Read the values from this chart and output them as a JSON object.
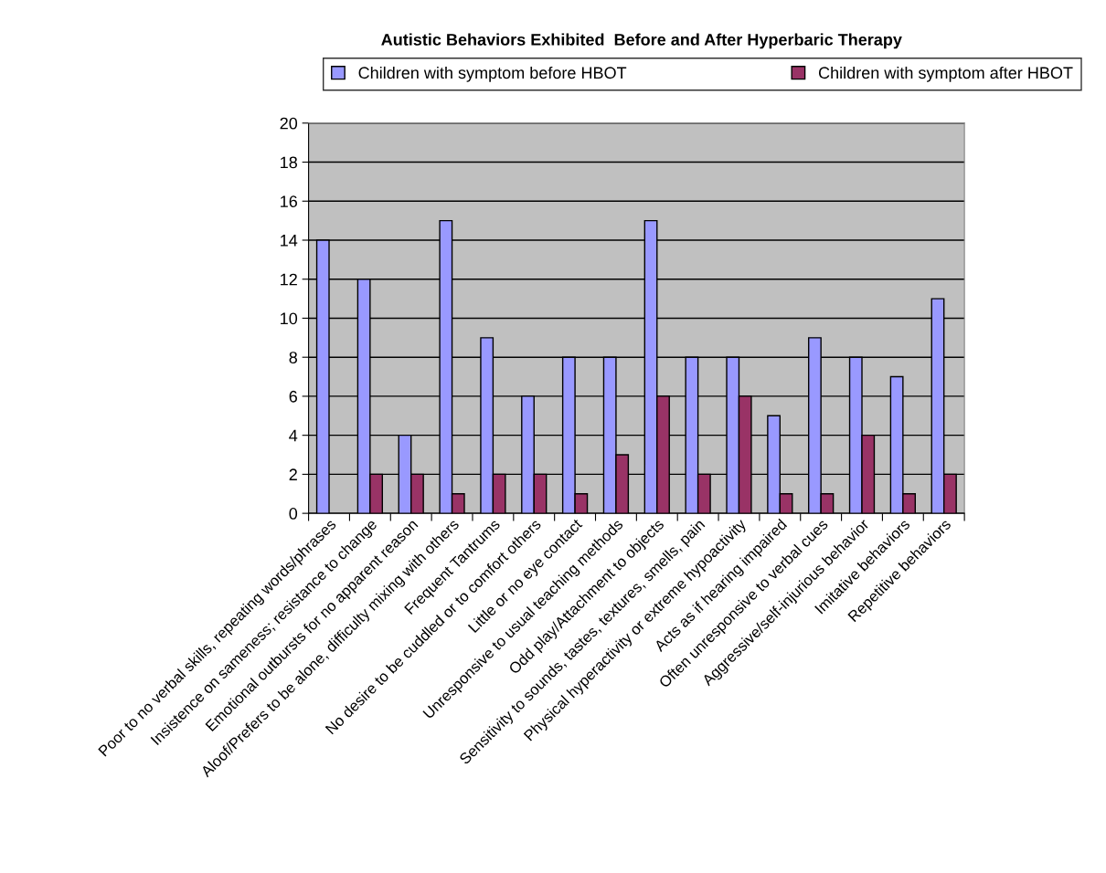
{
  "chart_data": {
    "type": "bar",
    "title": "Autistic Behaviors Exhibited  Before and After Hyperbaric Therapy",
    "categories": [
      "Poor to no verbal skills, repeating words/phrases",
      "Insistence on sameness; resistance to change",
      "Emotional outbursts for no apparent reason",
      "Aloof/Prefers to be alone, difficulty mixing with others",
      "Frequent Tantrums",
      "No desire to be cuddled or to comfort others",
      "Little or no eye contact",
      "Unresponsive to usual teaching methods",
      "Odd play/Attachment to objects",
      "Sensitivity to sounds, tastes, textures, smells, pain",
      "Physical hyperactivity or extreme hypoactivity",
      "Acts as if hearing impaired",
      "Often unresponsive to verbal cues",
      "Aggressive/self-injurious behavior",
      "Imitative behaviors",
      "Repetitive behaviors"
    ],
    "series": [
      {
        "name": "Children with symptom before HBOT",
        "color": "#9999ff",
        "values": [
          14,
          12,
          4,
          15,
          9,
          6,
          8,
          8,
          15,
          8,
          8,
          5,
          9,
          8,
          7,
          11
        ]
      },
      {
        "name": "Children with symptom after HBOT",
        "color": "#993366",
        "values": [
          0,
          2,
          2,
          1,
          2,
          2,
          1,
          3,
          6,
          2,
          6,
          1,
          1,
          4,
          1,
          2
        ]
      }
    ],
    "ylim": [
      0,
      20
    ],
    "yticks": [
      0,
      2,
      4,
      6,
      8,
      10,
      12,
      14,
      16,
      18,
      20
    ],
    "grid": "y",
    "legend": "top"
  }
}
